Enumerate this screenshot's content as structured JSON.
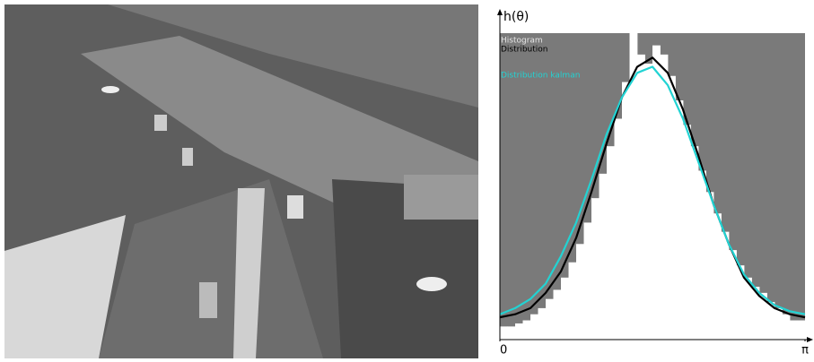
{
  "chart_data": {
    "type": "histogram",
    "y_label": "h(θ)",
    "xlim": [
      0,
      3.1416
    ],
    "ylim": [
      0,
      1
    ],
    "xticks": [
      0,
      {
        "value": 3.1416,
        "label": "π"
      }
    ],
    "background": "#7a7a7a",
    "series": [
      {
        "name": "Histogram",
        "type": "histogram",
        "color": "#ffffff",
        "bins": [
          0,
          0.0785,
          0.1571,
          0.2356,
          0.3142,
          0.3927,
          0.4712,
          0.5498,
          0.6283,
          0.7069,
          0.7854,
          0.8639,
          0.9425,
          1.021,
          1.0996,
          1.1781,
          1.2566,
          1.3352,
          1.4137,
          1.4923,
          1.5708,
          1.6493,
          1.7279,
          1.8064,
          1.885,
          1.9635,
          2.042,
          2.1206,
          2.1991,
          2.2777,
          2.3562,
          2.4347,
          2.5133,
          2.5918,
          2.6704,
          2.7489,
          2.8274,
          2.906,
          2.9845,
          3.0631,
          3.1416
        ],
        "values": [
          0.04,
          0.04,
          0.05,
          0.06,
          0.08,
          0.1,
          0.13,
          0.16,
          0.2,
          0.25,
          0.31,
          0.38,
          0.46,
          0.54,
          0.63,
          0.72,
          0.84,
          1.0,
          0.93,
          0.9,
          0.96,
          0.93,
          0.86,
          0.78,
          0.7,
          0.63,
          0.55,
          0.48,
          0.41,
          0.35,
          0.29,
          0.24,
          0.2,
          0.17,
          0.15,
          0.12,
          0.1,
          0.08,
          0.06,
          0.06
        ]
      },
      {
        "name": "Distribution",
        "type": "line",
        "color": "#000000",
        "x": [
          0,
          0.1571,
          0.3142,
          0.4712,
          0.6283,
          0.7854,
          0.9425,
          1.0996,
          1.2566,
          1.4137,
          1.5708,
          1.7279,
          1.885,
          2.042,
          2.1991,
          2.3562,
          2.5133,
          2.6704,
          2.8274,
          2.9845,
          3.1416
        ],
        "values": [
          0.07,
          0.08,
          0.1,
          0.15,
          0.22,
          0.33,
          0.48,
          0.64,
          0.79,
          0.89,
          0.92,
          0.87,
          0.75,
          0.6,
          0.44,
          0.31,
          0.2,
          0.14,
          0.1,
          0.08,
          0.07
        ]
      },
      {
        "name": "Distribution kalman",
        "type": "line",
        "color": "#22d3d3",
        "x": [
          0,
          0.1571,
          0.3142,
          0.4712,
          0.6283,
          0.7854,
          0.9425,
          1.0996,
          1.2566,
          1.4137,
          1.5708,
          1.7279,
          1.885,
          2.042,
          2.1991,
          2.3562,
          2.5133,
          2.6704,
          2.8274,
          2.9845,
          3.1416
        ],
        "values": [
          0.08,
          0.1,
          0.13,
          0.18,
          0.27,
          0.38,
          0.52,
          0.67,
          0.79,
          0.87,
          0.89,
          0.83,
          0.72,
          0.58,
          0.44,
          0.31,
          0.21,
          0.15,
          0.11,
          0.09,
          0.08
        ]
      }
    ]
  }
}
